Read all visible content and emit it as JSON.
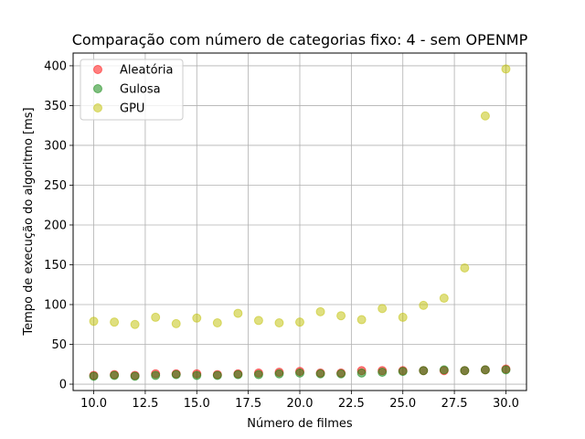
{
  "chart_data": {
    "type": "scatter",
    "title": "Comparação com número de categorias fixo: 4 - sem OPENMP",
    "xlabel": "Número de filmes",
    "ylabel": "Tempo de execução do algoritmo [ms]",
    "xlim": [
      9,
      31
    ],
    "ylim": [
      -8,
      416
    ],
    "xticks": [
      10.0,
      12.5,
      15.0,
      17.5,
      20.0,
      22.5,
      25.0,
      27.5,
      30.0
    ],
    "xtick_labels": [
      "10.0",
      "12.5",
      "15.0",
      "17.5",
      "20.0",
      "22.5",
      "25.0",
      "27.5",
      "30.0"
    ],
    "yticks": [
      0,
      50,
      100,
      150,
      200,
      250,
      300,
      350,
      400
    ],
    "ytick_labels": [
      "0",
      "50",
      "100",
      "150",
      "200",
      "250",
      "300",
      "350",
      "400"
    ],
    "grid": true,
    "legend_position": "top-left",
    "series": [
      {
        "name": "Aleatória",
        "color": "#ff0000",
        "x": [
          10,
          11,
          12,
          13,
          14,
          15,
          16,
          17,
          18,
          19,
          20,
          21,
          22,
          23,
          24,
          25,
          26,
          27,
          28,
          29,
          30
        ],
        "y": [
          11,
          12,
          11,
          13,
          13,
          13,
          12,
          13,
          14,
          15,
          16,
          14,
          14,
          17,
          17,
          17,
          17,
          17,
          17,
          18,
          19
        ]
      },
      {
        "name": "Gulosa",
        "color": "#008000",
        "x": [
          10,
          11,
          12,
          13,
          14,
          15,
          16,
          17,
          18,
          19,
          20,
          21,
          22,
          23,
          24,
          25,
          26,
          27,
          28,
          29,
          30
        ],
        "y": [
          10,
          11,
          10,
          11,
          12,
          11,
          11,
          12,
          12,
          13,
          14,
          13,
          13,
          14,
          15,
          16,
          17,
          18,
          17,
          18,
          18
        ]
      },
      {
        "name": "GPU",
        "color": "#bfbf00",
        "x": [
          10,
          11,
          12,
          13,
          14,
          15,
          16,
          17,
          18,
          19,
          20,
          21,
          22,
          23,
          24,
          25,
          26,
          27,
          28,
          29,
          30
        ],
        "y": [
          79,
          78,
          75,
          84,
          76,
          83,
          77,
          89,
          80,
          77,
          78,
          91,
          86,
          81,
          95,
          84,
          99,
          108,
          146,
          337,
          396
        ]
      }
    ]
  }
}
